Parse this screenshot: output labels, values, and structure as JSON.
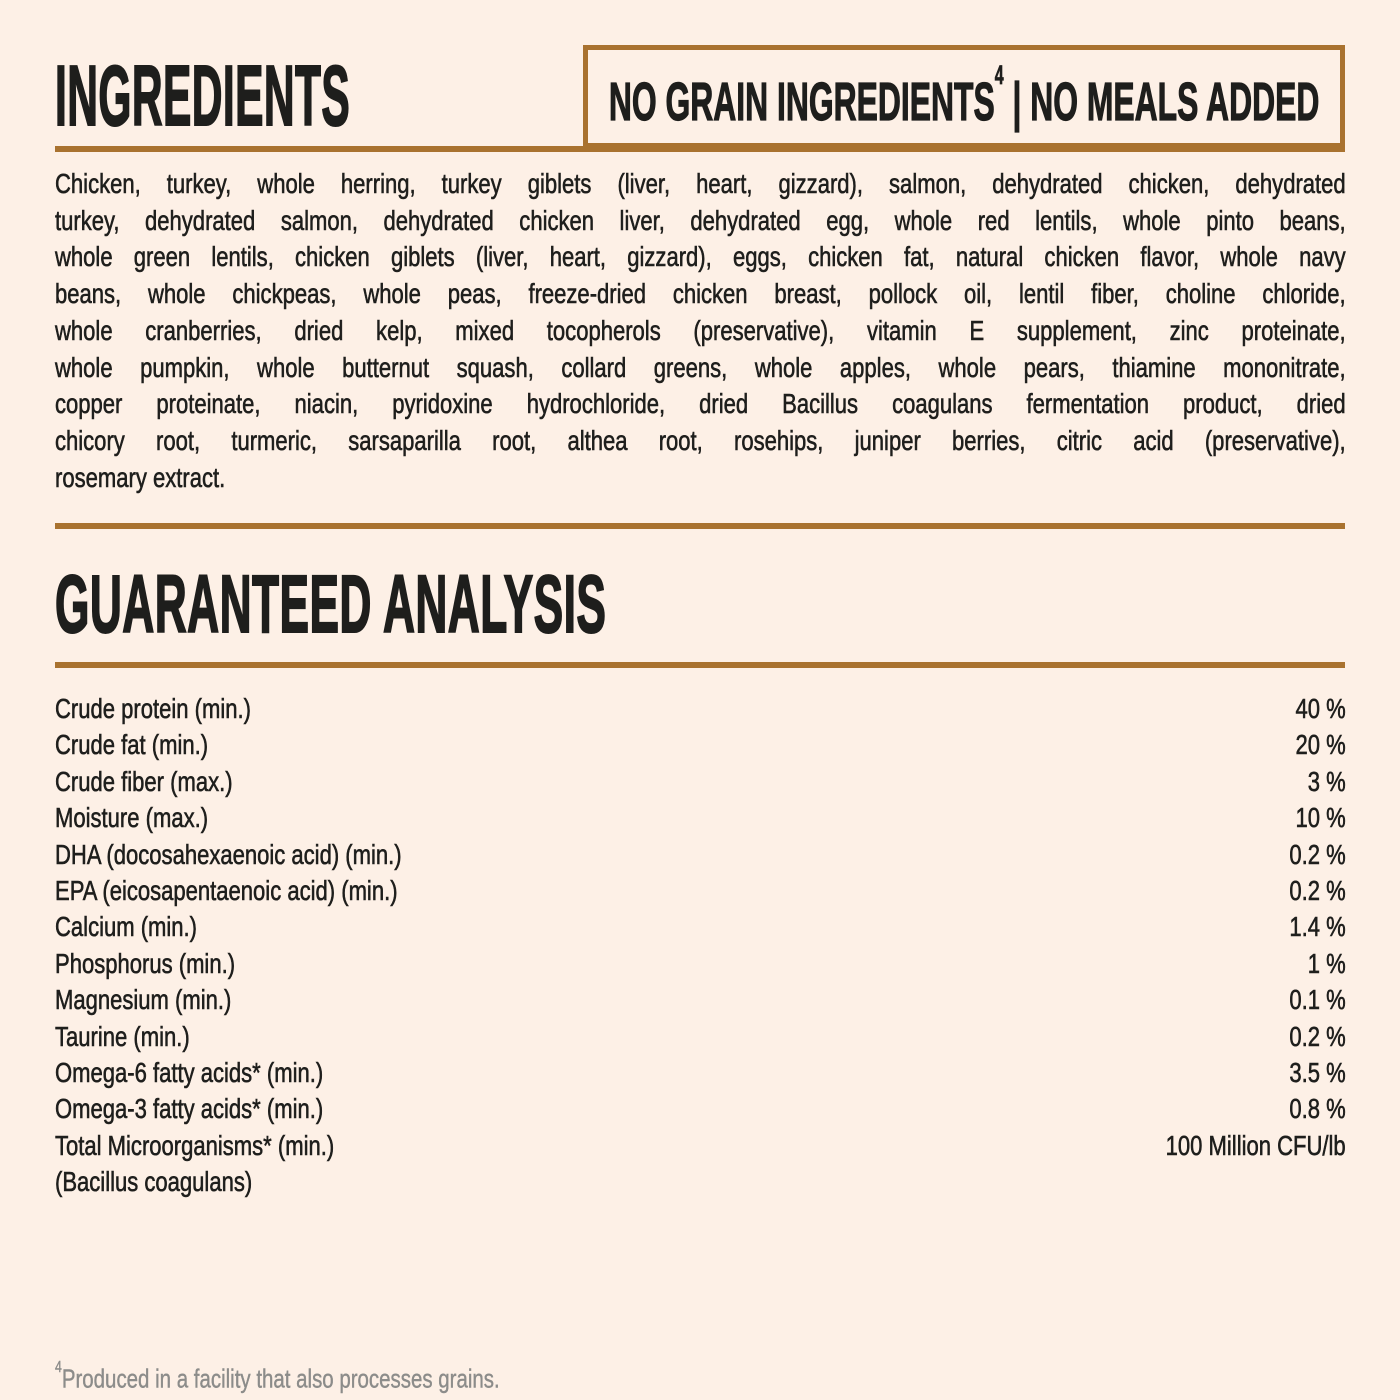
{
  "page": {
    "background_color": "#fdf0e6",
    "accent_color": "#a9722f",
    "text_color": "#1e1e1c",
    "footnote_color": "#8c8c8a"
  },
  "ingredients": {
    "title": "INGREDIENTS",
    "badge": {
      "text_main": "NO GRAIN INGREDIENTS",
      "marker": "4",
      "text_rest": " | NO MEALS ADDED"
    },
    "body_lines": [
      "Chicken, turkey, whole herring, turkey giblets (liver, heart, gizzard), salmon, dehydrated chicken, dehydrated",
      "turkey, dehydrated salmon, dehydrated chicken liver, dehydrated egg, whole red lentils, whole pinto beans,",
      "whole green lentils, chicken giblets (liver, heart, gizzard), eggs, chicken fat, natural chicken flavor, whole navy",
      "beans, whole chickpeas, whole peas, freeze-dried chicken breast, pollock oil, lentil fiber, choline chloride,",
      "whole cranberries, dried kelp, mixed tocopherols (preservative), vitamin E supplement, zinc proteinate,",
      "whole pumpkin, whole butternut squash, collard greens, whole apples, whole pears, thiamine mononitrate,",
      "copper proteinate, niacin, pyridoxine hydrochloride, dried Bacillus coagulans fermentation product, dried",
      "chicory root, turmeric, sarsaparilla root, althea root, rosehips, juniper berries, citric acid (preservative),",
      "rosemary extract."
    ]
  },
  "analysis": {
    "title": "GUARANTEED ANALYSIS",
    "rows": [
      {
        "label": "Crude protein (min.)",
        "value": "40 %"
      },
      {
        "label": "Crude fat (min.)",
        "value": "20 %"
      },
      {
        "label": "Crude fiber (max.)",
        "value": "3 %"
      },
      {
        "label": "Moisture (max.)",
        "value": "10 %"
      },
      {
        "label": "DHA (docosahexaenoic acid) (min.)",
        "value": "0.2 %"
      },
      {
        "label": "EPA (eicosapentaenoic acid) (min.)",
        "value": "0.2 %"
      },
      {
        "label": "Calcium (min.)",
        "value": "1.4 %"
      },
      {
        "label": "Phosphorus (min.)",
        "value": "1 %"
      },
      {
        "label": "Magnesium (min.)",
        "value": "0.1 %"
      },
      {
        "label": "Taurine (min.)",
        "value": "0.2 %"
      },
      {
        "label": "Omega-6 fatty acids* (min.)",
        "value": "3.5 %"
      },
      {
        "label": "Omega-3 fatty acids* (min.)",
        "value": "0.8 %"
      },
      {
        "label": "Total Microorganisms* (min.)",
        "value": "100 Million CFU/lb"
      },
      {
        "label": "(Bacillus coagulans)",
        "value": ""
      }
    ]
  },
  "footnote": {
    "marker": "4",
    "text": "Produced in a facility that also processes grains."
  }
}
